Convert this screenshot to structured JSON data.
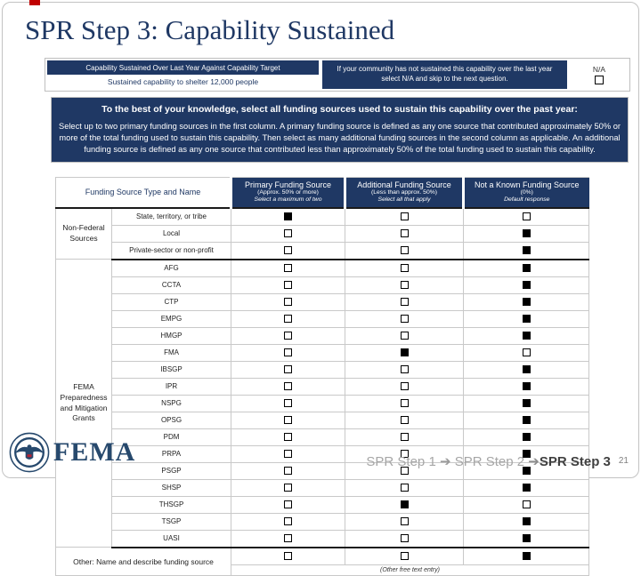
{
  "colors": {
    "navy": "#1f3864",
    "frame_border": "#bfbfbf",
    "accent_red": "#c00000"
  },
  "slide": {
    "title": "SPR Step 3: Capability Sustained",
    "page_number": "21"
  },
  "header_table": {
    "question_label": "Capability Sustained Over Last Year Against Capability Target",
    "question_value": "Sustained capability to shelter 12,000 people",
    "na_instruction": "If your community has not sustained this capability over the last year select N/A and skip to the next question.",
    "na_label": "N/A",
    "na_checked": false
  },
  "instruction_box": {
    "title": "To the best of your knowledge, select all funding sources used to sustain this capability over the past year:",
    "body": "Select up to two primary funding sources in the first column. A primary funding source is defined as any one source that contributed approximately 50% or more of the total funding used to sustain this capability. Then select as many additional funding sources in the second column as applicable. An additional funding source is defined as any one source that contributed less than approximately 50% of the total funding used to sustain this capability."
  },
  "funding_table": {
    "col1_header": "Funding Source Type and Name",
    "columns": [
      {
        "title": "Primary Funding Source",
        "subtitle": "(Approx. 50% or more)",
        "note": "Select a maximum of two"
      },
      {
        "title": "Additional Funding Source",
        "subtitle": "(Less than approx. 50%)",
        "note": "Select all that apply"
      },
      {
        "title": "Not a Known Funding Source",
        "subtitle": "(0%)",
        "note": "Default response"
      }
    ],
    "groups": [
      {
        "label": "Non-Federal Sources",
        "rows": [
          {
            "name": "State, territory, or tribe",
            "primary": true,
            "additional": false,
            "not_known": false
          },
          {
            "name": "Local",
            "primary": false,
            "additional": false,
            "not_known": true
          },
          {
            "name": "Private-sector or non-profit",
            "primary": false,
            "additional": false,
            "not_known": true
          }
        ]
      },
      {
        "label": "FEMA Preparedness and Mitigation Grants",
        "rows": [
          {
            "name": "AFG",
            "primary": false,
            "additional": false,
            "not_known": true
          },
          {
            "name": "CCTA",
            "primary": false,
            "additional": false,
            "not_known": true
          },
          {
            "name": "CTP",
            "primary": false,
            "additional": false,
            "not_known": true
          },
          {
            "name": "EMPG",
            "primary": false,
            "additional": false,
            "not_known": true
          },
          {
            "name": "HMGP",
            "primary": false,
            "additional": false,
            "not_known": true
          },
          {
            "name": "FMA",
            "primary": false,
            "additional": true,
            "not_known": false
          },
          {
            "name": "IBSGP",
            "primary": false,
            "additional": false,
            "not_known": true
          },
          {
            "name": "IPR",
            "primary": false,
            "additional": false,
            "not_known": true
          },
          {
            "name": "NSPG",
            "primary": false,
            "additional": false,
            "not_known": true
          },
          {
            "name": "OPSG",
            "primary": false,
            "additional": false,
            "not_known": true
          },
          {
            "name": "PDM",
            "primary": false,
            "additional": false,
            "not_known": true
          },
          {
            "name": "PRPA",
            "primary": false,
            "additional": false,
            "not_known": true
          },
          {
            "name": "PSGP",
            "primary": false,
            "additional": false,
            "not_known": true
          },
          {
            "name": "SHSP",
            "primary": false,
            "additional": false,
            "not_known": true
          },
          {
            "name": "THSGP",
            "primary": false,
            "additional": true,
            "not_known": false
          },
          {
            "name": "TSGP",
            "primary": false,
            "additional": false,
            "not_known": true
          },
          {
            "name": "UASI",
            "primary": false,
            "additional": false,
            "not_known": true
          }
        ]
      }
    ],
    "other_row": {
      "label": "Other: Name and describe funding source",
      "primary": false,
      "additional": false,
      "not_known": true,
      "note": "(Other free text entry)"
    }
  },
  "footer": {
    "logo_text": "FEMA",
    "steps": [
      {
        "label": "SPR Step 1",
        "active": false
      },
      {
        "label": "SPR Step 2",
        "active": false
      },
      {
        "label": "SPR Step 3",
        "active": true
      }
    ],
    "page_number": "21"
  }
}
